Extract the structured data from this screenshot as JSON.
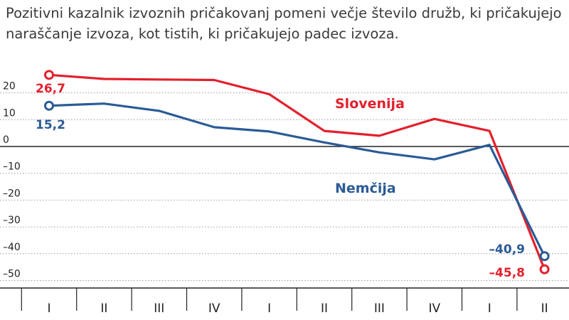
{
  "subtitle": "Pozitivni kazalnik izvoznih pričakovanj pomeni večje število družb, ki pričakujejo naraščanje izvoza, kot tistih, ki pričakujejo padec izvoza.",
  "chart_data": {
    "type": "line",
    "categories": [
      "I",
      "II",
      "III",
      "IV",
      "I",
      "II",
      "III",
      "IV",
      "I",
      "II"
    ],
    "y_ticks": [
      20,
      10,
      0,
      -10,
      -20,
      -30,
      -40,
      -50
    ],
    "y_tick_labels": [
      "20",
      "10",
      "0",
      "–10",
      "–20",
      "–30",
      "–40",
      "–50"
    ],
    "ylim": [
      -55,
      27
    ],
    "grid": "horizontal dotted",
    "series": [
      {
        "name": "Slovenija",
        "color": "#e3202c",
        "values": [
          26.7,
          25.2,
          25.0,
          24.8,
          19.5,
          5.8,
          4.0,
          10.3,
          5.8,
          -45.8
        ],
        "start_label": "26,7",
        "end_label": "–45,8"
      },
      {
        "name": "Nemčija",
        "color": "#2a5b96",
        "values": [
          15.2,
          16.0,
          13.3,
          7.2,
          5.6,
          1.5,
          -2.2,
          -4.8,
          0.6,
          -40.9
        ],
        "start_label": "15,2",
        "end_label": "–40,9"
      }
    ]
  }
}
